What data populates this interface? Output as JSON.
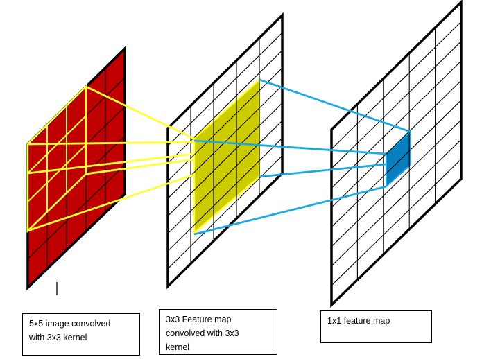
{
  "captions": {
    "input": {
      "line1": "5x5 image convolved",
      "line2": "with 3x3 kernel"
    },
    "mid": {
      "line1": "3x3 Feature map",
      "line2": "convolved with 3x3",
      "line3": "kernel"
    },
    "output": {
      "line1": "1x1 feature map"
    }
  },
  "colors": {
    "input_fill": "#c00000",
    "kernel_fill": "#cccc00",
    "output_cell_fill": "#0a7fc0",
    "yellow_line": "#ffff33",
    "blue_line": "#1ca9df",
    "grid_line": "#000000"
  },
  "grids": {
    "input": {
      "rows": 5,
      "cols": 5
    },
    "mid": {
      "rows": 9,
      "cols": 5
    },
    "output": {
      "rows": 9,
      "cols": 5
    }
  }
}
